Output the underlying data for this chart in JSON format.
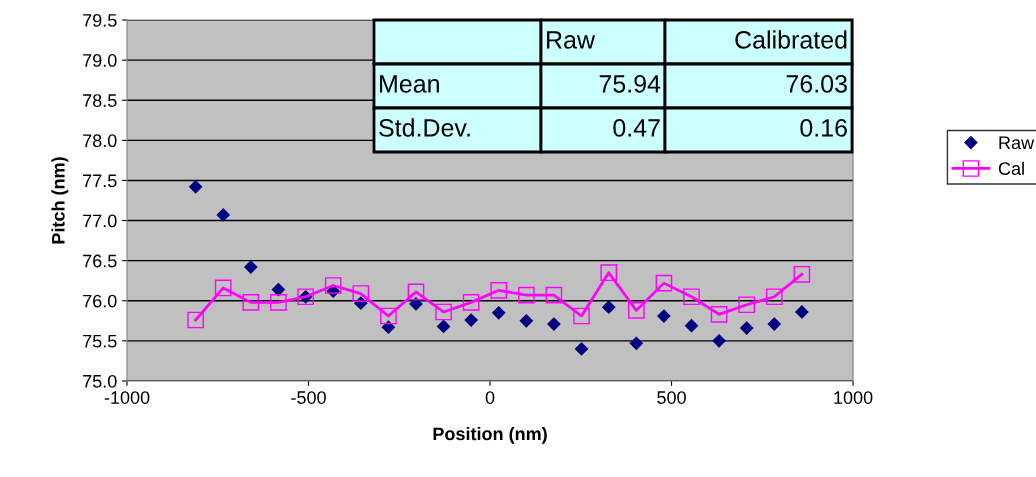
{
  "chart_data": {
    "type": "scatter",
    "xlabel": "Position (nm)",
    "ylabel": "Pitch (nm)",
    "x": [
      -811,
      -735,
      -659,
      -583,
      -508,
      -432,
      -356,
      -280,
      -204,
      -128,
      -52,
      24,
      100,
      176,
      252,
      327,
      403,
      479,
      555,
      631,
      707,
      783,
      859
    ],
    "series": [
      {
        "name": "Raw",
        "marker": "diamond",
        "color": "#000080",
        "values": [
          77.42,
          77.07,
          76.42,
          76.14,
          76.05,
          76.12,
          75.97,
          75.67,
          75.96,
          75.68,
          75.76,
          75.85,
          75.75,
          75.71,
          75.4,
          75.92,
          75.47,
          75.81,
          75.69,
          75.5,
          75.66,
          75.71,
          75.86
        ]
      },
      {
        "name": "Cal",
        "type": "line",
        "marker": "square",
        "color": "#ff00ff",
        "values": [
          75.76,
          76.16,
          75.98,
          75.98,
          76.05,
          76.19,
          76.09,
          75.81,
          76.11,
          75.86,
          75.98,
          76.13,
          76.07,
          76.07,
          75.81,
          76.35,
          75.88,
          76.22,
          76.05,
          75.83,
          75.95,
          76.05,
          76.33
        ]
      }
    ],
    "xlim": [
      -1000,
      1000
    ],
    "xticks": [
      -1000,
      -500,
      0,
      500,
      1000
    ],
    "ylim": [
      75,
      79.5
    ],
    "yticks": [
      {
        "value": 75,
        "label": "75.0"
      },
      {
        "value": 75.5,
        "label": "75.5"
      },
      {
        "value": 76,
        "label": "76.0"
      },
      {
        "value": 76.5,
        "label": "76.5"
      },
      {
        "value": 77,
        "label": "77.0"
      },
      {
        "value": 77.5,
        "label": "77.5"
      },
      {
        "value": 78,
        "label": "78.0"
      },
      {
        "value": 78.5,
        "label": "78.5"
      },
      {
        "value": 79,
        "label": "79.0"
      },
      {
        "value": 79.5,
        "label": "79.5"
      }
    ],
    "grid": "y",
    "legend": "right",
    "annotations": [
      "Raw",
      "Calibrated",
      "Mean",
      "75.94",
      "76.03",
      "Std.Dev.",
      "0.47",
      "0.16"
    ]
  }
}
